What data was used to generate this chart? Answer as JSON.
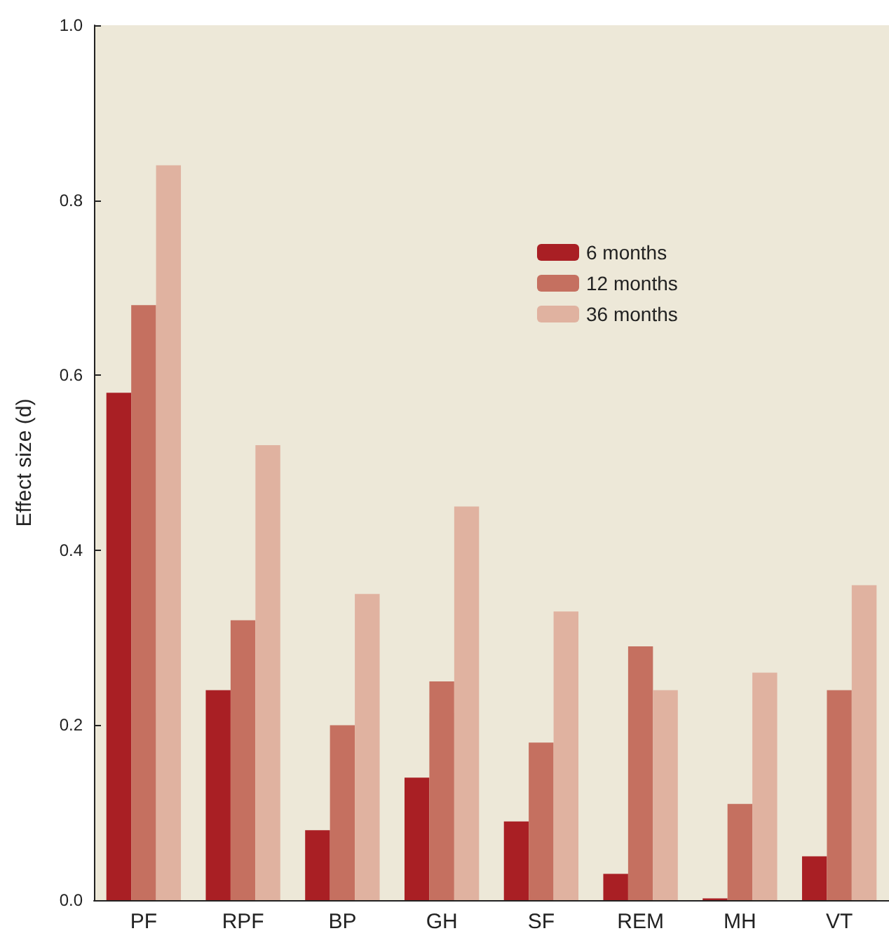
{
  "chart_data": {
    "type": "bar",
    "ylabel": "Effect size (d)",
    "categories": [
      "PF",
      "RPF",
      "BP",
      "GH",
      "SF",
      "REM",
      "MH",
      "VT"
    ],
    "series": [
      {
        "name": "6 months",
        "color": "#a91f24",
        "values": [
          0.58,
          0.24,
          0.08,
          0.14,
          0.09,
          0.03,
          0.002,
          0.05
        ]
      },
      {
        "name": "12 months",
        "color": "#c57060",
        "values": [
          0.68,
          0.32,
          0.2,
          0.25,
          0.18,
          0.29,
          0.11,
          0.24
        ]
      },
      {
        "name": "36 months",
        "color": "#e0b2a0",
        "values": [
          0.84,
          0.52,
          0.35,
          0.45,
          0.33,
          0.24,
          0.26,
          0.36
        ]
      }
    ],
    "ylim": [
      0,
      1
    ],
    "yticks": [
      {
        "value": 0,
        "label": "0.0"
      },
      0.2,
      0.4,
      0.6,
      0.8,
      {
        "value": 1,
        "label": "1.0"
      }
    ],
    "grid": false,
    "legend": "top right"
  }
}
